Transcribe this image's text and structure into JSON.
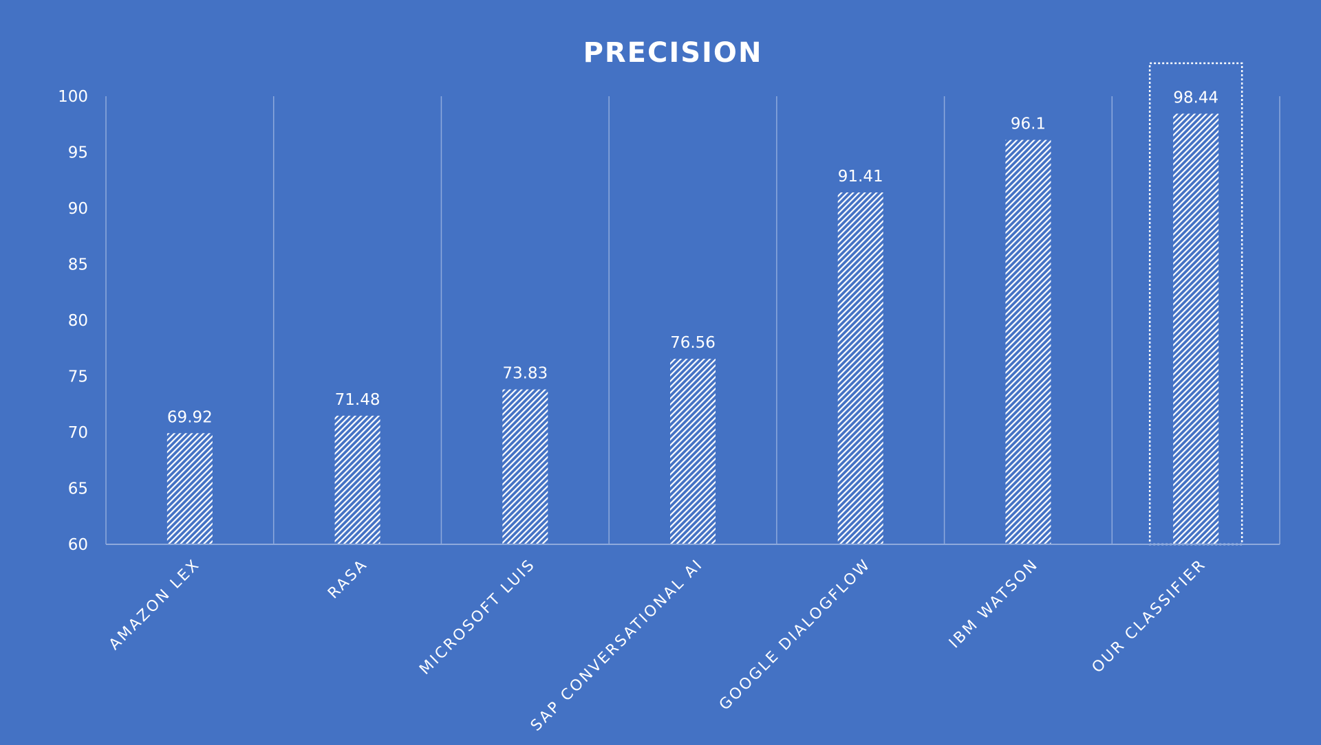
{
  "chart_data": {
    "type": "bar",
    "title": "PRECISION",
    "categories": [
      "AMAZON LEX",
      "RASA",
      "MICROSOFT LUIS",
      "SAP CONVERSATIONAL AI",
      "GOOGLE DIALOGFLOW",
      "IBM WATSON",
      "OUR CLASSIFIER"
    ],
    "values": [
      69.92,
      71.48,
      73.83,
      76.56,
      91.41,
      96.1,
      98.44
    ],
    "value_labels": [
      "69.92",
      "71.48",
      "73.83",
      "76.56",
      "91.41",
      "96.1",
      "98.44"
    ],
    "xlabel": "",
    "ylabel": "",
    "ylim": [
      60,
      100
    ],
    "yticks": [
      "60",
      "65",
      "70",
      "75",
      "80",
      "85",
      "90",
      "95",
      "100"
    ],
    "grid": "vertical",
    "highlighted_category": "OUR CLASSIFIER",
    "colors": {
      "background": "#4472C4",
      "bar_hatch": "#FFFFFF",
      "text": "#FFFFFF",
      "gridline": "#8FAADC"
    }
  }
}
